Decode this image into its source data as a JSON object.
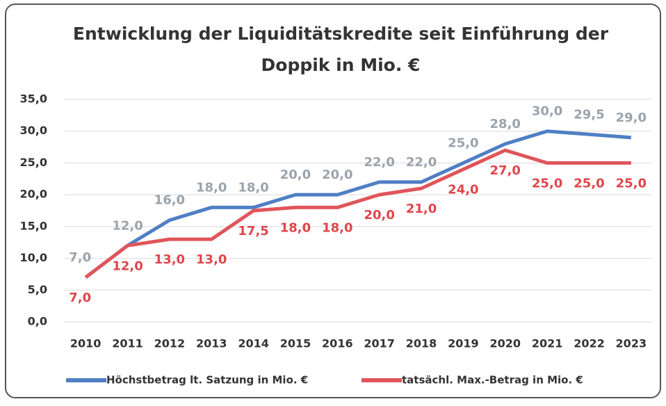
{
  "chart_data": {
    "type": "line",
    "title": [
      "Entwicklung der Liquiditätskredite seit Einführung der",
      "Doppik in Mio. €"
    ],
    "categories": [
      "2010",
      "2011",
      "2012",
      "2013",
      "2014",
      "2015",
      "2016",
      "2017",
      "2018",
      "2019",
      "2020",
      "2021",
      "2022",
      "2023"
    ],
    "series": [
      {
        "name": "Höchstbetrag lt. Satzung in Mio. €",
        "color": "#4f7fc4",
        "values": [
          7,
          12,
          16,
          18,
          18,
          20,
          20,
          22,
          22,
          25,
          28,
          30,
          29.5,
          29
        ],
        "value_labels": [
          "7,0",
          "12,0",
          "16,0",
          "18,0",
          "18,0",
          "20,0",
          "20,0",
          "22,0",
          "22,0",
          "25,0",
          "28,0",
          "30,0",
          "29,5",
          "29,0"
        ],
        "label_color": "#9aa3ab"
      },
      {
        "name": "tatsächl. Max.-Betrag in Mio. €",
        "color": "#e0555a",
        "values": [
          7,
          12,
          13,
          13,
          17.5,
          18,
          18,
          20,
          21,
          24,
          27,
          25,
          25,
          25
        ],
        "value_labels": [
          "7,0",
          "12,0",
          "13,0",
          "13,0",
          "17,5",
          "18,0",
          "18,0",
          "20,0",
          "21,0",
          "24,0",
          "27,0",
          "25,0",
          "25,0",
          "25,0"
        ],
        "label_color": "#e0454b"
      }
    ],
    "ylim": [
      0,
      35
    ],
    "yticks": [
      {
        "value": 0,
        "label": "0,0"
      },
      {
        "value": 5,
        "label": "5,0"
      },
      {
        "value": 10,
        "label": "10,0"
      },
      {
        "value": 15,
        "label": "15,0"
      },
      {
        "value": 20,
        "label": "20,0"
      },
      {
        "value": 25,
        "label": "25,0"
      },
      {
        "value": 30,
        "label": "30,0"
      },
      {
        "value": 35,
        "label": "35,0"
      }
    ],
    "grid": true,
    "legend": "bottom"
  }
}
